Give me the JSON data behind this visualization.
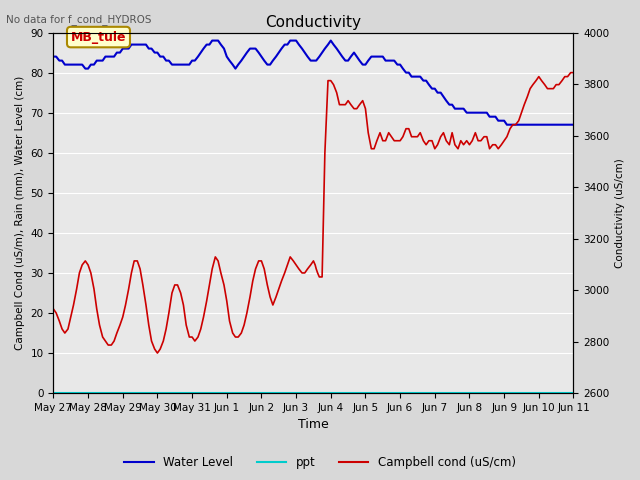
{
  "title": "Conductivity",
  "top_left_text": "No data for f_cond_HYDROS",
  "annotation_box": "MB_tule",
  "xlabel": "Time",
  "ylabel_left": "Campbell Cond (uS/m), Rain (mm), Water Level (cm)",
  "ylabel_right": "Conductivity (uS/cm)",
  "ylim_left": [
    0,
    90
  ],
  "ylim_right": [
    2600,
    4000
  ],
  "xtick_labels": [
    "May 27",
    "May 28",
    "May 29",
    "May 30",
    "May 31",
    "Jun 1",
    "Jun 2",
    "Jun 3",
    "Jun 4",
    "Jun 5",
    "Jun 6",
    "Jun 7",
    "Jun 8",
    "Jun 9",
    "Jun 10",
    "Jun 11"
  ],
  "yticks_left": [
    0,
    10,
    20,
    30,
    40,
    50,
    60,
    70,
    80,
    90
  ],
  "yticks_right": [
    2600,
    2800,
    3000,
    3200,
    3400,
    3600,
    3800,
    4000
  ],
  "bg_color": "#d8d8d8",
  "plot_bg_color": "#e8e8e8",
  "grid_color": "#ffffff",
  "water_level_color": "#0000cc",
  "ppt_color": "#00cccc",
  "campbell_color": "#cc0000",
  "legend_entries": [
    "Water Level",
    "ppt",
    "Campbell cond (uS/cm)"
  ],
  "water_level_x": [
    0.0,
    0.08,
    0.17,
    0.25,
    0.33,
    0.42,
    0.5,
    0.58,
    0.67,
    0.75,
    0.83,
    0.92,
    1.0,
    1.08,
    1.17,
    1.25,
    1.33,
    1.42,
    1.5,
    1.58,
    1.67,
    1.75,
    1.83,
    1.92,
    2.0,
    2.08,
    2.17,
    2.25,
    2.33,
    2.42,
    2.5,
    2.58,
    2.67,
    2.75,
    2.83,
    2.92,
    3.0,
    3.08,
    3.17,
    3.25,
    3.33,
    3.42,
    3.5,
    3.58,
    3.67,
    3.75,
    3.83,
    3.92,
    4.0,
    4.08,
    4.17,
    4.25,
    4.33,
    4.42,
    4.5,
    4.58,
    4.67,
    4.75,
    4.83,
    4.92,
    5.0,
    5.08,
    5.17,
    5.25,
    5.33,
    5.42,
    5.5,
    5.58,
    5.67,
    5.75,
    5.83,
    5.92,
    6.0,
    6.08,
    6.17,
    6.25,
    6.33,
    6.42,
    6.5,
    6.58,
    6.67,
    6.75,
    6.83,
    6.92,
    7.0,
    7.08,
    7.17,
    7.25,
    7.33,
    7.42,
    7.5,
    7.58,
    7.67,
    7.75,
    7.83,
    7.92,
    8.0,
    8.08,
    8.17,
    8.25,
    8.33,
    8.42,
    8.5,
    8.58,
    8.67,
    8.75,
    8.83,
    8.92,
    9.0,
    9.08,
    9.17,
    9.25,
    9.33,
    9.42,
    9.5,
    9.58,
    9.67,
    9.75,
    9.83,
    9.92,
    10.0,
    10.08,
    10.17,
    10.25,
    10.33,
    10.42,
    10.5,
    10.58,
    10.67,
    10.75,
    10.83,
    10.92,
    11.0,
    11.08,
    11.17,
    11.25,
    11.33,
    11.42,
    11.5,
    11.58,
    11.67,
    11.75,
    11.83,
    11.92,
    12.0,
    12.08,
    12.17,
    12.25,
    12.33,
    12.42,
    12.5,
    12.58,
    12.67,
    12.75,
    12.83,
    12.92,
    13.0,
    13.08,
    13.17,
    13.25,
    13.33,
    13.42,
    13.5,
    13.58,
    13.67,
    13.75,
    13.83,
    13.92,
    14.0,
    14.08,
    14.17,
    14.25,
    14.33,
    14.42,
    14.5,
    14.58,
    14.67,
    14.75,
    14.83,
    14.92,
    15.0
  ],
  "water_level_y": [
    84,
    84,
    83,
    83,
    82,
    82,
    82,
    82,
    82,
    82,
    82,
    81,
    81,
    82,
    82,
    83,
    83,
    83,
    84,
    84,
    84,
    84,
    85,
    85,
    86,
    86,
    86,
    87,
    87,
    87,
    87,
    87,
    87,
    86,
    86,
    85,
    85,
    84,
    84,
    83,
    83,
    82,
    82,
    82,
    82,
    82,
    82,
    82,
    83,
    83,
    84,
    85,
    86,
    87,
    87,
    88,
    88,
    88,
    87,
    86,
    84,
    83,
    82,
    81,
    82,
    83,
    84,
    85,
    86,
    86,
    86,
    85,
    84,
    83,
    82,
    82,
    83,
    84,
    85,
    86,
    87,
    87,
    88,
    88,
    88,
    87,
    86,
    85,
    84,
    83,
    83,
    83,
    84,
    85,
    86,
    87,
    88,
    87,
    86,
    85,
    84,
    83,
    83,
    84,
    85,
    84,
    83,
    82,
    82,
    83,
    84,
    84,
    84,
    84,
    84,
    83,
    83,
    83,
    83,
    82,
    82,
    81,
    80,
    80,
    79,
    79,
    79,
    79,
    78,
    78,
    77,
    76,
    76,
    75,
    75,
    74,
    73,
    72,
    72,
    71,
    71,
    71,
    71,
    70,
    70,
    70,
    70,
    70,
    70,
    70,
    70,
    69,
    69,
    69,
    68,
    68,
    68,
    67,
    67,
    67,
    67,
    67,
    67,
    67,
    67,
    67,
    67,
    67,
    67,
    67,
    67,
    67,
    67,
    67,
    67,
    67,
    67,
    67,
    67,
    67,
    67
  ],
  "campbell_x": [
    0.0,
    0.08,
    0.17,
    0.25,
    0.33,
    0.42,
    0.5,
    0.58,
    0.67,
    0.75,
    0.83,
    0.92,
    1.0,
    1.08,
    1.17,
    1.25,
    1.33,
    1.42,
    1.5,
    1.58,
    1.67,
    1.75,
    1.83,
    1.92,
    2.0,
    2.08,
    2.17,
    2.25,
    2.33,
    2.42,
    2.5,
    2.58,
    2.67,
    2.75,
    2.83,
    2.92,
    3.0,
    3.08,
    3.17,
    3.25,
    3.33,
    3.42,
    3.5,
    3.58,
    3.67,
    3.75,
    3.83,
    3.92,
    4.0,
    4.08,
    4.17,
    4.25,
    4.33,
    4.42,
    4.5,
    4.58,
    4.67,
    4.75,
    4.83,
    4.92,
    5.0,
    5.08,
    5.17,
    5.25,
    5.33,
    5.42,
    5.5,
    5.58,
    5.67,
    5.75,
    5.83,
    5.92,
    6.0,
    6.08,
    6.17,
    6.25,
    6.33,
    6.42,
    6.5,
    6.58,
    6.67,
    6.75,
    6.83,
    6.92,
    7.0,
    7.08,
    7.17,
    7.25,
    7.33,
    7.42,
    7.5,
    7.55,
    7.58,
    7.62,
    7.67,
    7.75,
    7.83,
    7.92,
    8.0,
    8.08,
    8.17,
    8.25,
    8.33,
    8.42,
    8.5,
    8.58,
    8.67,
    8.75,
    8.83,
    8.92,
    9.0,
    9.08,
    9.17,
    9.25,
    9.33,
    9.42,
    9.5,
    9.58,
    9.67,
    9.75,
    9.83,
    9.92,
    10.0,
    10.08,
    10.17,
    10.25,
    10.33,
    10.42,
    10.5,
    10.58,
    10.67,
    10.75,
    10.83,
    10.92,
    11.0,
    11.08,
    11.17,
    11.25,
    11.33,
    11.42,
    11.5,
    11.58,
    11.67,
    11.75,
    11.83,
    11.92,
    12.0,
    12.08,
    12.17,
    12.25,
    12.33,
    12.42,
    12.5,
    12.58,
    12.67,
    12.75,
    12.83,
    12.92,
    13.0,
    13.08,
    13.17,
    13.25,
    13.33,
    13.42,
    13.5,
    13.58,
    13.67,
    13.75,
    13.83,
    13.92,
    14.0,
    14.08,
    14.17,
    14.25,
    14.33,
    14.42,
    14.5,
    14.58,
    14.67,
    14.75,
    14.83,
    14.92,
    15.0
  ],
  "campbell_y": [
    21,
    20,
    18,
    16,
    15,
    16,
    19,
    22,
    26,
    30,
    32,
    33,
    32,
    30,
    26,
    21,
    17,
    14,
    13,
    12,
    12,
    13,
    15,
    17,
    19,
    22,
    26,
    30,
    33,
    33,
    31,
    27,
    22,
    17,
    13,
    11,
    10,
    11,
    13,
    16,
    20,
    25,
    27,
    27,
    25,
    22,
    17,
    14,
    14,
    13,
    14,
    16,
    19,
    23,
    27,
    31,
    34,
    33,
    30,
    27,
    23,
    18,
    15,
    14,
    14,
    15,
    17,
    20,
    24,
    28,
    31,
    33,
    33,
    31,
    27,
    24,
    22,
    24,
    26,
    28,
    30,
    32,
    34,
    33,
    32,
    31,
    30,
    30,
    31,
    32,
    33,
    32,
    31,
    30,
    29,
    29,
    60,
    78,
    78,
    77,
    75,
    72,
    72,
    72,
    73,
    72,
    71,
    71,
    72,
    73,
    71,
    65,
    61,
    61,
    63,
    65,
    63,
    63,
    65,
    64,
    63,
    63,
    63,
    64,
    66,
    66,
    64,
    64,
    64,
    65,
    63,
    62,
    63,
    63,
    61,
    62,
    64,
    65,
    63,
    62,
    65,
    62,
    61,
    63,
    62,
    63,
    62,
    63,
    65,
    63,
    63,
    64,
    64,
    61,
    62,
    62,
    61,
    62,
    63,
    64,
    66,
    67,
    67,
    68,
    70,
    72,
    74,
    76,
    77,
    78,
    79,
    78,
    77,
    76,
    76,
    76,
    77,
    77,
    78,
    79,
    79,
    80,
    80
  ]
}
